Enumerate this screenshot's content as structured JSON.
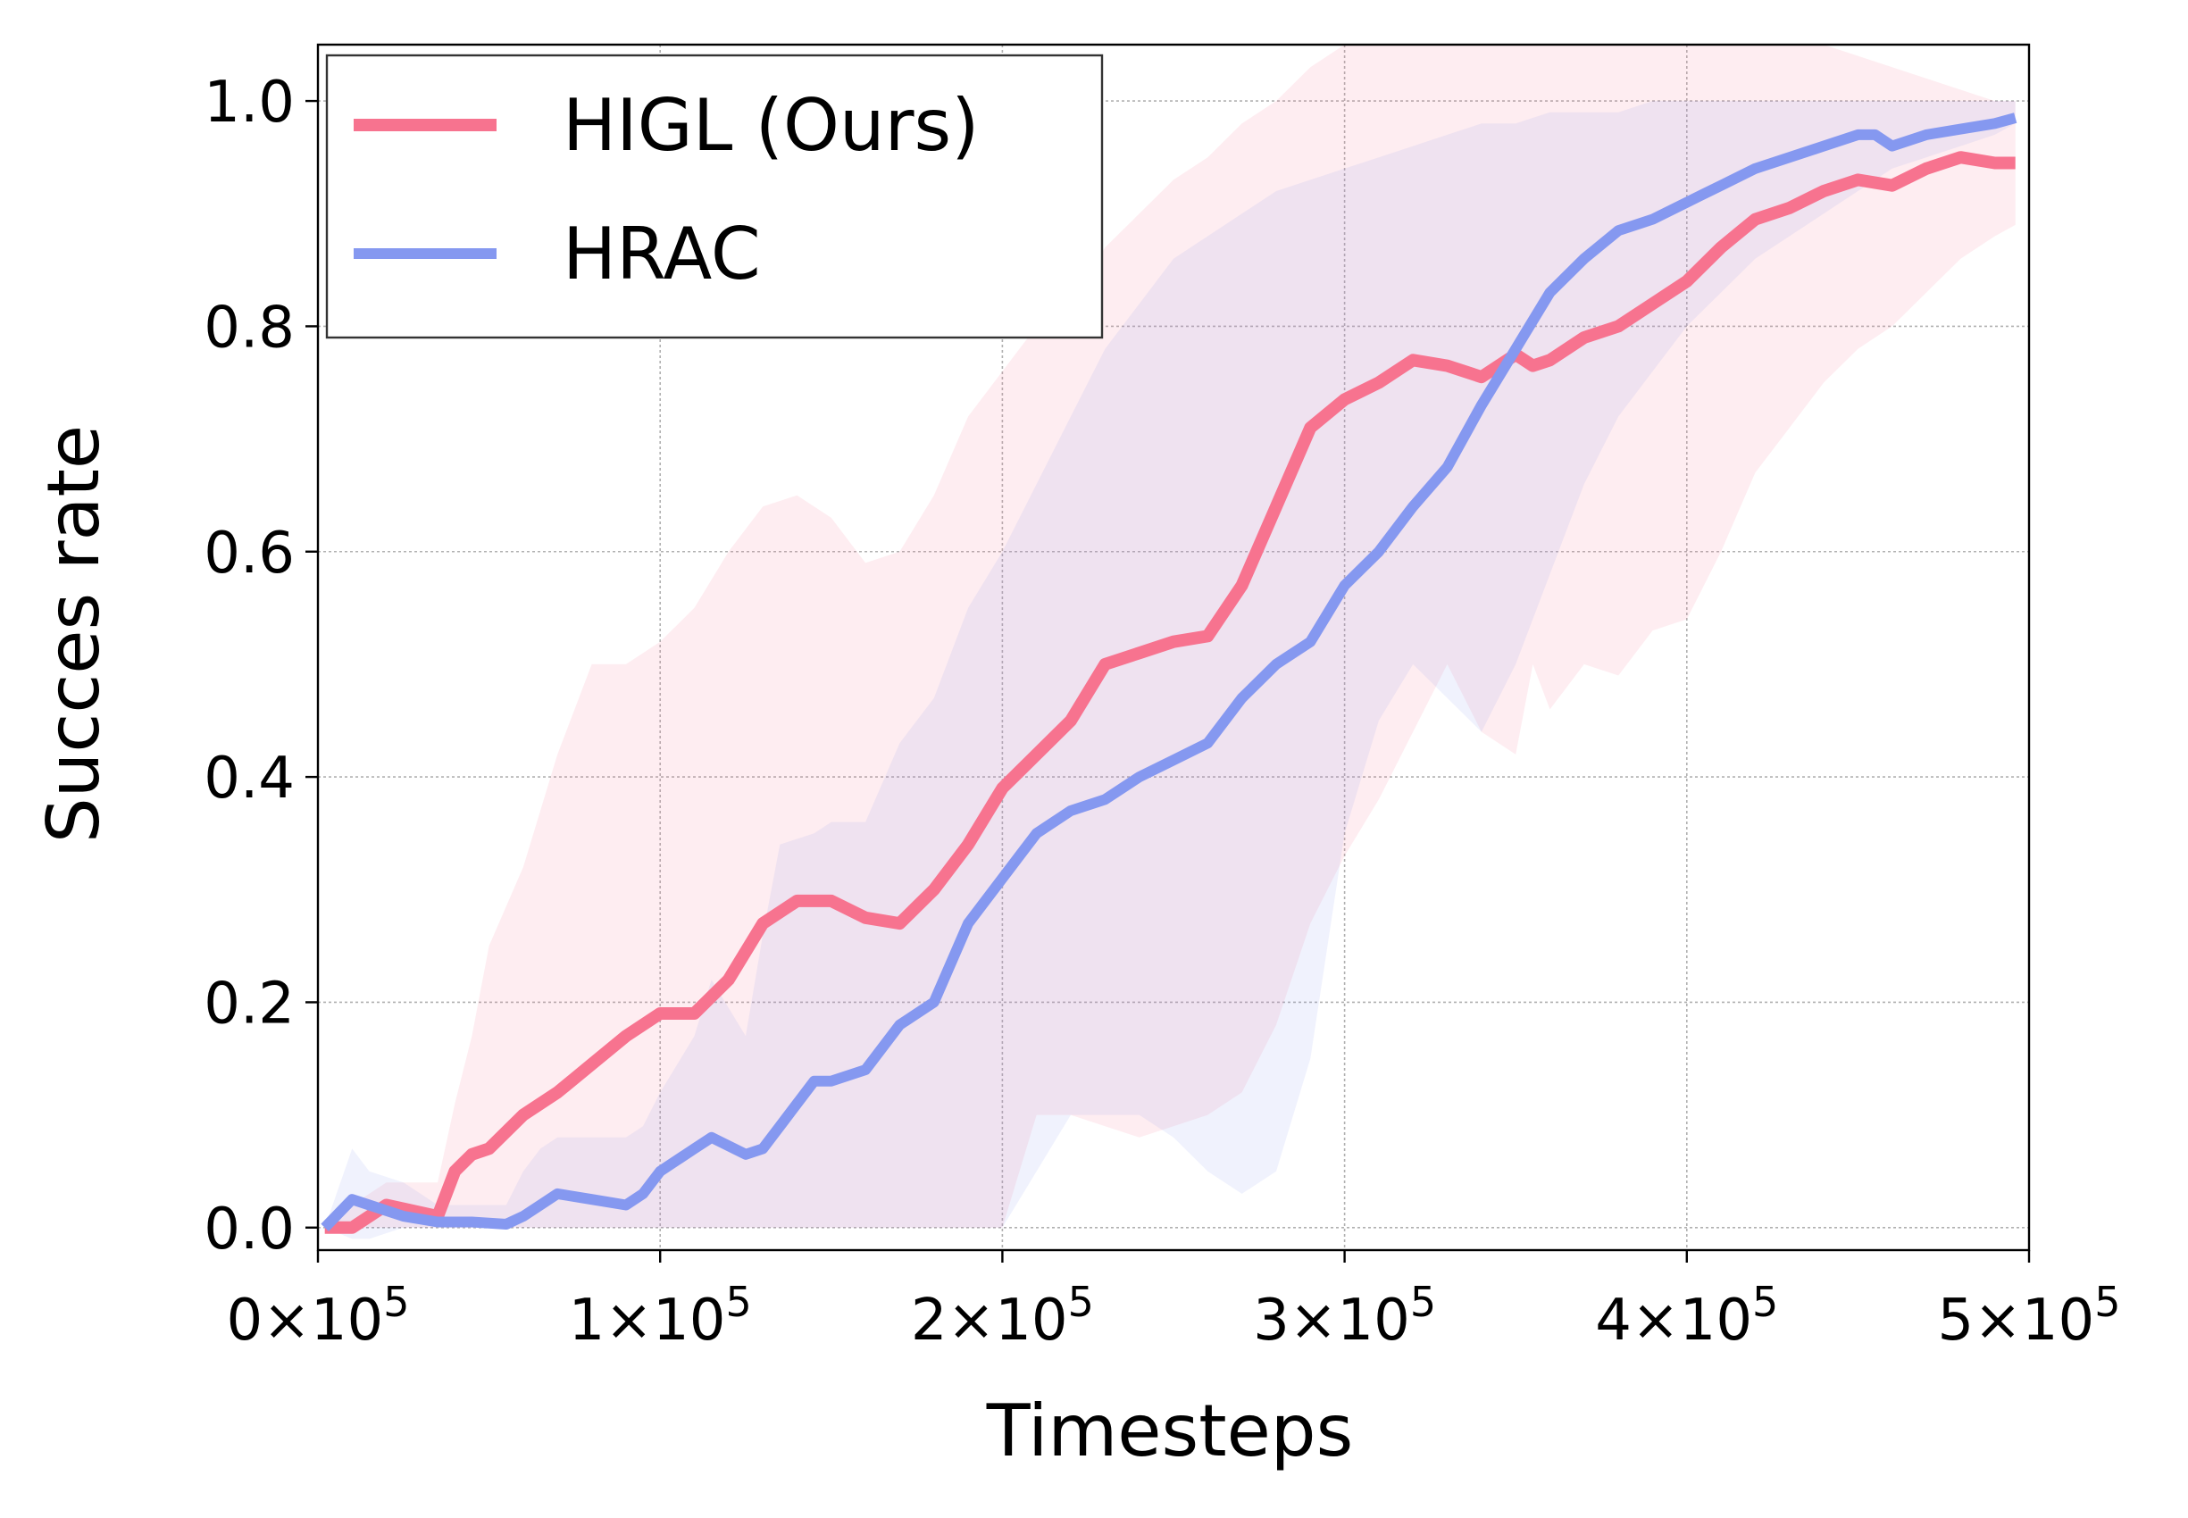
{
  "chart_data": {
    "type": "line",
    "title": "",
    "xlabel": "Timesteps",
    "ylabel": "Succes rate",
    "xlim": [
      0,
      500000
    ],
    "ylim": [
      -0.02,
      1.05
    ],
    "grid": true,
    "legend_position": "top-left",
    "x_ticks": [
      {
        "value": 0,
        "mantissa": "0",
        "exp": "5"
      },
      {
        "value": 100000,
        "mantissa": "1",
        "exp": "5"
      },
      {
        "value": 200000,
        "mantissa": "2",
        "exp": "5"
      },
      {
        "value": 300000,
        "mantissa": "3",
        "exp": "5"
      },
      {
        "value": 400000,
        "mantissa": "4",
        "exp": "5"
      },
      {
        "value": 500000,
        "mantissa": "5",
        "exp": "5"
      }
    ],
    "y_ticks": [
      {
        "value": 0.0,
        "label": "0.0"
      },
      {
        "value": 0.2,
        "label": "0.2"
      },
      {
        "value": 0.4,
        "label": "0.4"
      },
      {
        "value": 0.6,
        "label": "0.6"
      },
      {
        "value": 0.8,
        "label": "0.8"
      },
      {
        "value": 1.0,
        "label": "1.0"
      }
    ],
    "series": [
      {
        "name": "HIGL (Ours)",
        "color": "#f7738f",
        "band_color": "#f7738f",
        "x": [
          2000,
          10000,
          20000,
          35000,
          40000,
          45000,
          50000,
          60000,
          70000,
          80000,
          90000,
          100000,
          110000,
          120000,
          130000,
          140000,
          150000,
          160000,
          170000,
          180000,
          190000,
          200000,
          210000,
          220000,
          230000,
          240000,
          250000,
          260000,
          270000,
          280000,
          290000,
          300000,
          310000,
          320000,
          330000,
          340000,
          350000,
          355000,
          360000,
          370000,
          380000,
          390000,
          400000,
          410000,
          420000,
          430000,
          440000,
          450000,
          460000,
          470000,
          480000,
          490000,
          496000
        ],
        "y": [
          0.0,
          0.0,
          0.02,
          0.01,
          0.05,
          0.065,
          0.07,
          0.1,
          0.12,
          0.145,
          0.17,
          0.19,
          0.19,
          0.22,
          0.27,
          0.29,
          0.29,
          0.275,
          0.27,
          0.3,
          0.34,
          0.39,
          0.42,
          0.45,
          0.5,
          0.51,
          0.52,
          0.525,
          0.57,
          0.64,
          0.71,
          0.735,
          0.75,
          0.77,
          0.765,
          0.755,
          0.775,
          0.765,
          0.77,
          0.79,
          0.8,
          0.82,
          0.84,
          0.87,
          0.895,
          0.905,
          0.92,
          0.93,
          0.925,
          0.94,
          0.95,
          0.945,
          0.945
        ],
        "lower": [
          0.0,
          0.0,
          0.0,
          0.0,
          0.0,
          0.0,
          0.0,
          0.0,
          0.0,
          0.0,
          0.0,
          0.0,
          0.0,
          0.0,
          0.0,
          0.0,
          0.0,
          0.0,
          0.0,
          0.0,
          0.0,
          0.0,
          0.1,
          0.1,
          0.09,
          0.08,
          0.09,
          0.1,
          0.12,
          0.18,
          0.27,
          0.33,
          0.38,
          0.44,
          0.5,
          0.44,
          0.42,
          0.5,
          0.46,
          0.5,
          0.49,
          0.53,
          0.54,
          0.6,
          0.67,
          0.71,
          0.75,
          0.78,
          0.8,
          0.83,
          0.86,
          0.88,
          0.89
        ],
        "upper": [
          0.0,
          0.02,
          0.04,
          0.04,
          0.11,
          0.17,
          0.25,
          0.32,
          0.42,
          0.5,
          0.5,
          0.52,
          0.55,
          0.6,
          0.64,
          0.65,
          0.63,
          0.59,
          0.6,
          0.65,
          0.72,
          0.76,
          0.8,
          0.82,
          0.87,
          0.9,
          0.93,
          0.95,
          0.98,
          1.0,
          1.03,
          1.05,
          1.05,
          1.05,
          1.05,
          1.05,
          1.05,
          1.05,
          1.05,
          1.05,
          1.05,
          1.05,
          1.05,
          1.05,
          1.05,
          1.05,
          1.05,
          1.04,
          1.03,
          1.02,
          1.01,
          1.0,
          1.0
        ]
      },
      {
        "name": "HRAC",
        "color": "#8598f0",
        "band_color": "#8598f0",
        "x": [
          2000,
          10000,
          15000,
          25000,
          35000,
          45000,
          55000,
          60000,
          65000,
          70000,
          80000,
          90000,
          95000,
          100000,
          110000,
          115000,
          125000,
          130000,
          135000,
          145000,
          150000,
          160000,
          170000,
          180000,
          190000,
          200000,
          210000,
          220000,
          230000,
          240000,
          250000,
          260000,
          270000,
          280000,
          290000,
          300000,
          310000,
          320000,
          330000,
          340000,
          350000,
          360000,
          370000,
          380000,
          390000,
          400000,
          410000,
          420000,
          430000,
          440000,
          450000,
          455000,
          460000,
          470000,
          480000,
          490000,
          496000
        ],
        "y": [
          0.0,
          0.025,
          0.02,
          0.01,
          0.005,
          0.005,
          0.003,
          0.01,
          0.02,
          0.03,
          0.025,
          0.02,
          0.03,
          0.05,
          0.07,
          0.08,
          0.065,
          0.07,
          0.09,
          0.13,
          0.13,
          0.14,
          0.18,
          0.2,
          0.27,
          0.31,
          0.35,
          0.37,
          0.38,
          0.4,
          0.415,
          0.43,
          0.47,
          0.5,
          0.52,
          0.57,
          0.6,
          0.64,
          0.675,
          0.73,
          0.78,
          0.83,
          0.86,
          0.885,
          0.895,
          0.91,
          0.925,
          0.94,
          0.95,
          0.96,
          0.97,
          0.97,
          0.96,
          0.97,
          0.975,
          0.98,
          0.985
        ],
        "lower": [
          0.0,
          -0.01,
          -0.01,
          0.0,
          0.0,
          0.0,
          0.0,
          0.0,
          0.0,
          0.0,
          0.0,
          0.0,
          0.0,
          0.0,
          0.0,
          0.0,
          0.0,
          0.0,
          0.0,
          0.0,
          0.0,
          0.0,
          0.0,
          0.0,
          0.0,
          0.0,
          0.05,
          0.1,
          0.1,
          0.1,
          0.08,
          0.05,
          0.03,
          0.05,
          0.15,
          0.35,
          0.45,
          0.5,
          0.47,
          0.44,
          0.5,
          0.58,
          0.66,
          0.72,
          0.76,
          0.8,
          0.83,
          0.86,
          0.88,
          0.9,
          0.92,
          0.93,
          0.94,
          0.95,
          0.96,
          0.97,
          0.98
        ],
        "upper": [
          0.0,
          0.07,
          0.05,
          0.04,
          0.02,
          0.02,
          0.02,
          0.05,
          0.07,
          0.08,
          0.08,
          0.08,
          0.09,
          0.12,
          0.17,
          0.22,
          0.17,
          0.26,
          0.34,
          0.35,
          0.36,
          0.36,
          0.43,
          0.47,
          0.55,
          0.6,
          0.66,
          0.72,
          0.78,
          0.82,
          0.86,
          0.88,
          0.9,
          0.92,
          0.93,
          0.94,
          0.95,
          0.96,
          0.97,
          0.98,
          0.98,
          0.99,
          0.99,
          0.99,
          1.0,
          1.0,
          1.0,
          1.0,
          1.0,
          1.0,
          1.0,
          1.0,
          1.0,
          1.0,
          1.0,
          1.0,
          1.0
        ]
      }
    ]
  }
}
